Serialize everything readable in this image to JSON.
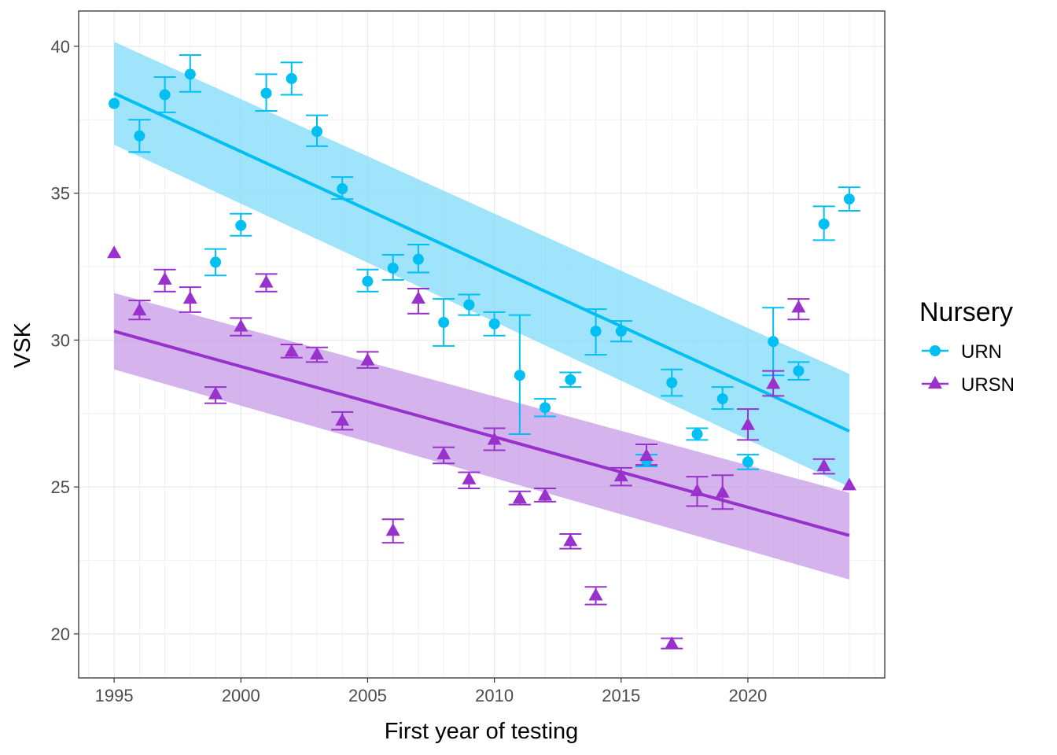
{
  "chart_data": {
    "type": "scatter",
    "xlabel": "First year of testing",
    "ylabel": "VSK",
    "xlim": [
      1993.6,
      2025.4
    ],
    "ylim": [
      18.5,
      41.2
    ],
    "x_ticks": [
      1995,
      2000,
      2005,
      2010,
      2015,
      2020
    ],
    "y_ticks": [
      20,
      25,
      30,
      35,
      40
    ],
    "grid": true,
    "legend": {
      "title": "Nursery",
      "placement": "right"
    },
    "series": [
      {
        "name": "URN",
        "color": "#00BFF2",
        "band_color": "#7FDBFA",
        "marker": "circle",
        "points": [
          {
            "x": 1995,
            "y": 38.05,
            "lo": 38.05,
            "hi": 38.05
          },
          {
            "x": 1996,
            "y": 36.95,
            "lo": 36.4,
            "hi": 37.5
          },
          {
            "x": 1997,
            "y": 38.35,
            "lo": 37.75,
            "hi": 38.95
          },
          {
            "x": 1998,
            "y": 39.05,
            "lo": 38.45,
            "hi": 39.7
          },
          {
            "x": 1999,
            "y": 32.65,
            "lo": 32.2,
            "hi": 33.1
          },
          {
            "x": 2000,
            "y": 33.9,
            "lo": 33.55,
            "hi": 34.3
          },
          {
            "x": 2001,
            "y": 38.4,
            "lo": 37.8,
            "hi": 39.05
          },
          {
            "x": 2002,
            "y": 38.9,
            "lo": 38.35,
            "hi": 39.45
          },
          {
            "x": 2003,
            "y": 37.1,
            "lo": 36.6,
            "hi": 37.65
          },
          {
            "x": 2004,
            "y": 35.15,
            "lo": 34.8,
            "hi": 35.55
          },
          {
            "x": 2005,
            "y": 32.0,
            "lo": 31.65,
            "hi": 32.4
          },
          {
            "x": 2006,
            "y": 32.45,
            "lo": 32.05,
            "hi": 32.9
          },
          {
            "x": 2007,
            "y": 32.75,
            "lo": 32.3,
            "hi": 33.25
          },
          {
            "x": 2008,
            "y": 30.6,
            "lo": 29.8,
            "hi": 31.4
          },
          {
            "x": 2009,
            "y": 31.2,
            "lo": 30.85,
            "hi": 31.55
          },
          {
            "x": 2010,
            "y": 30.55,
            "lo": 30.15,
            "hi": 30.95
          },
          {
            "x": 2011,
            "y": 28.8,
            "lo": 26.8,
            "hi": 30.85
          },
          {
            "x": 2012,
            "y": 27.7,
            "lo": 27.4,
            "hi": 28.0
          },
          {
            "x": 2013,
            "y": 28.65,
            "lo": 28.4,
            "hi": 28.9
          },
          {
            "x": 2014,
            "y": 30.3,
            "lo": 29.5,
            "hi": 31.05
          },
          {
            "x": 2015,
            "y": 30.3,
            "lo": 29.95,
            "hi": 30.65
          },
          {
            "x": 2016,
            "y": 25.9,
            "lo": 25.7,
            "hi": 26.1
          },
          {
            "x": 2017,
            "y": 28.55,
            "lo": 28.1,
            "hi": 29.0
          },
          {
            "x": 2018,
            "y": 26.8,
            "lo": 26.6,
            "hi": 27.0
          },
          {
            "x": 2019,
            "y": 28.0,
            "lo": 27.65,
            "hi": 28.4
          },
          {
            "x": 2020,
            "y": 25.85,
            "lo": 25.6,
            "hi": 26.1
          },
          {
            "x": 2021,
            "y": 29.95,
            "lo": 28.8,
            "hi": 31.1
          },
          {
            "x": 2022,
            "y": 28.95,
            "lo": 28.65,
            "hi": 29.25
          },
          {
            "x": 2023,
            "y": 33.95,
            "lo": 33.4,
            "hi": 34.55
          },
          {
            "x": 2024,
            "y": 34.8,
            "lo": 34.4,
            "hi": 35.2
          }
        ],
        "trend": {
          "x": [
            1995,
            2024
          ],
          "y": [
            38.4,
            26.9
          ]
        },
        "band": {
          "x": [
            1995,
            2024
          ],
          "lower": [
            36.65,
            25.0
          ],
          "upper": [
            40.15,
            28.85
          ]
        }
      },
      {
        "name": "URSN",
        "color": "#9932CC",
        "band_color": "#C79AE6",
        "marker": "triangle",
        "points": [
          {
            "x": 1995,
            "y": 32.95,
            "lo": 32.95,
            "hi": 32.95
          },
          {
            "x": 1996,
            "y": 31.0,
            "lo": 30.7,
            "hi": 31.35
          },
          {
            "x": 1997,
            "y": 32.05,
            "lo": 31.65,
            "hi": 32.4
          },
          {
            "x": 1998,
            "y": 31.4,
            "lo": 30.95,
            "hi": 31.8
          },
          {
            "x": 1999,
            "y": 28.15,
            "lo": 27.85,
            "hi": 28.4
          },
          {
            "x": 2000,
            "y": 30.45,
            "lo": 30.15,
            "hi": 30.75
          },
          {
            "x": 2001,
            "y": 31.95,
            "lo": 31.65,
            "hi": 32.25
          },
          {
            "x": 2002,
            "y": 29.6,
            "lo": 29.4,
            "hi": 29.85
          },
          {
            "x": 2003,
            "y": 29.5,
            "lo": 29.25,
            "hi": 29.75
          },
          {
            "x": 2004,
            "y": 27.25,
            "lo": 26.95,
            "hi": 27.55
          },
          {
            "x": 2005,
            "y": 29.3,
            "lo": 29.05,
            "hi": 29.6
          },
          {
            "x": 2006,
            "y": 23.5,
            "lo": 23.1,
            "hi": 23.9
          },
          {
            "x": 2007,
            "y": 31.4,
            "lo": 30.9,
            "hi": 31.75
          },
          {
            "x": 2008,
            "y": 26.1,
            "lo": 25.8,
            "hi": 26.35
          },
          {
            "x": 2009,
            "y": 25.25,
            "lo": 24.95,
            "hi": 25.5
          },
          {
            "x": 2010,
            "y": 26.6,
            "lo": 26.25,
            "hi": 27.0
          },
          {
            "x": 2011,
            "y": 24.6,
            "lo": 24.4,
            "hi": 24.85
          },
          {
            "x": 2012,
            "y": 24.7,
            "lo": 24.5,
            "hi": 24.95
          },
          {
            "x": 2013,
            "y": 23.15,
            "lo": 22.9,
            "hi": 23.4
          },
          {
            "x": 2014,
            "y": 21.3,
            "lo": 21.0,
            "hi": 21.6
          },
          {
            "x": 2015,
            "y": 25.35,
            "lo": 25.05,
            "hi": 25.65
          },
          {
            "x": 2016,
            "y": 26.05,
            "lo": 25.75,
            "hi": 26.45
          },
          {
            "x": 2017,
            "y": 19.65,
            "lo": 19.5,
            "hi": 19.85
          },
          {
            "x": 2018,
            "y": 24.85,
            "lo": 24.35,
            "hi": 25.35
          },
          {
            "x": 2019,
            "y": 24.8,
            "lo": 24.25,
            "hi": 25.4
          },
          {
            "x": 2020,
            "y": 27.1,
            "lo": 26.6,
            "hi": 27.65
          },
          {
            "x": 2021,
            "y": 28.5,
            "lo": 28.1,
            "hi": 28.95
          },
          {
            "x": 2022,
            "y": 31.1,
            "lo": 30.7,
            "hi": 31.4
          },
          {
            "x": 2023,
            "y": 25.7,
            "lo": 25.45,
            "hi": 25.95
          },
          {
            "x": 2024,
            "y": 25.05,
            "lo": 25.05,
            "hi": 25.05
          }
        ],
        "trend": {
          "x": [
            1995,
            2024
          ],
          "y": [
            30.3,
            23.35
          ]
        },
        "band": {
          "x": [
            1995,
            2024
          ],
          "lower": [
            29.0,
            21.85
          ],
          "upper": [
            31.6,
            24.8
          ]
        }
      }
    ]
  }
}
